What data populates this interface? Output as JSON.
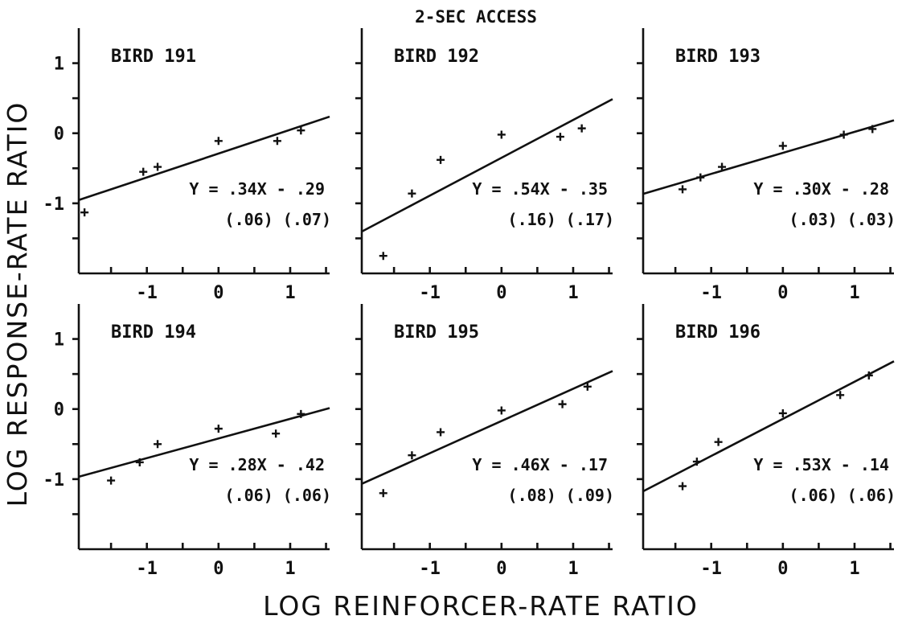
{
  "figure": {
    "title": "2-SEC ACCESS",
    "xlabel": "LOG REINFORCER-RATE RATIO",
    "ylabel": "LOG RESPONSE-RATE RATIO"
  },
  "chart_data": [
    {
      "type": "scatter",
      "title": "BIRD 191",
      "x": [
        -1.87,
        -1.05,
        -0.85,
        0.0,
        0.82,
        1.15
      ],
      "y": [
        -1.13,
        -0.55,
        -0.48,
        -0.11,
        -0.11,
        0.04
      ],
      "fit": {
        "slope": 0.34,
        "intercept": -0.29,
        "equation": "Y = .34X - .29",
        "se": "(.06)  (.07)"
      },
      "xlim": [
        -1.95,
        1.55
      ],
      "ylim": [
        -2.0,
        1.5
      ],
      "xticks": [
        "-1",
        "0",
        "1"
      ],
      "yticks": [
        "1",
        "0",
        "-1"
      ]
    },
    {
      "type": "scatter",
      "title": "BIRD 192",
      "x": [
        -1.65,
        -1.25,
        -0.85,
        0.0,
        0.82,
        1.12
      ],
      "y": [
        -1.75,
        -0.86,
        -0.38,
        -0.02,
        -0.05,
        0.07
      ],
      "fit": {
        "slope": 0.54,
        "intercept": -0.35,
        "equation": "Y = .54X - .35",
        "se": "(.16)  (.17)"
      },
      "xlim": [
        -1.95,
        1.55
      ],
      "ylim": [
        -2.0,
        1.5
      ],
      "xticks": [
        "-1",
        "0",
        "1"
      ],
      "yticks": []
    },
    {
      "type": "scatter",
      "title": "BIRD 193",
      "x": [
        -1.4,
        -1.15,
        -0.85,
        0.0,
        0.85,
        1.25
      ],
      "y": [
        -0.8,
        -0.63,
        -0.48,
        -0.18,
        -0.02,
        0.06
      ],
      "fit": {
        "slope": 0.3,
        "intercept": -0.28,
        "equation": "Y = .30X - .28",
        "se": "(.03)  (.03)"
      },
      "xlim": [
        -1.95,
        1.55
      ],
      "ylim": [
        -2.0,
        1.5
      ],
      "xticks": [
        "-1",
        "0",
        "1"
      ],
      "yticks": []
    },
    {
      "type": "scatter",
      "title": "BIRD 194",
      "x": [
        -1.5,
        -1.1,
        -0.85,
        0.0,
        0.8,
        1.15
      ],
      "y": [
        -1.02,
        -0.76,
        -0.5,
        -0.28,
        -0.35,
        -0.07
      ],
      "fit": {
        "slope": 0.28,
        "intercept": -0.42,
        "equation": "Y = .28X - .42",
        "se": "(.06)  (.06)"
      },
      "xlim": [
        -1.95,
        1.55
      ],
      "ylim": [
        -2.0,
        1.5
      ],
      "xticks": [
        "-1",
        "0",
        "1"
      ],
      "yticks": [
        "1",
        "0",
        "-1"
      ]
    },
    {
      "type": "scatter",
      "title": "BIRD 195",
      "x": [
        -1.65,
        -1.25,
        -0.85,
        0.0,
        0.85,
        1.2
      ],
      "y": [
        -1.2,
        -0.66,
        -0.33,
        -0.02,
        0.07,
        0.32
      ],
      "fit": {
        "slope": 0.46,
        "intercept": -0.17,
        "equation": "Y = .46X - .17",
        "se": "(.08)  (.09)"
      },
      "xlim": [
        -1.95,
        1.55
      ],
      "ylim": [
        -2.0,
        1.5
      ],
      "xticks": [
        "-1",
        "0",
        "1"
      ],
      "yticks": []
    },
    {
      "type": "scatter",
      "title": "BIRD 196",
      "x": [
        -1.4,
        -1.2,
        -0.9,
        0.0,
        0.8,
        1.2
      ],
      "y": [
        -1.1,
        -0.75,
        -0.47,
        -0.06,
        0.2,
        0.48
      ],
      "fit": {
        "slope": 0.53,
        "intercept": -0.14,
        "equation": "Y = .53X - .14",
        "se": "(.06)  (.06)"
      },
      "xlim": [
        -1.95,
        1.55
      ],
      "ylim": [
        -2.0,
        1.5
      ],
      "xticks": [
        "-1",
        "0",
        "1"
      ],
      "yticks": []
    }
  ]
}
